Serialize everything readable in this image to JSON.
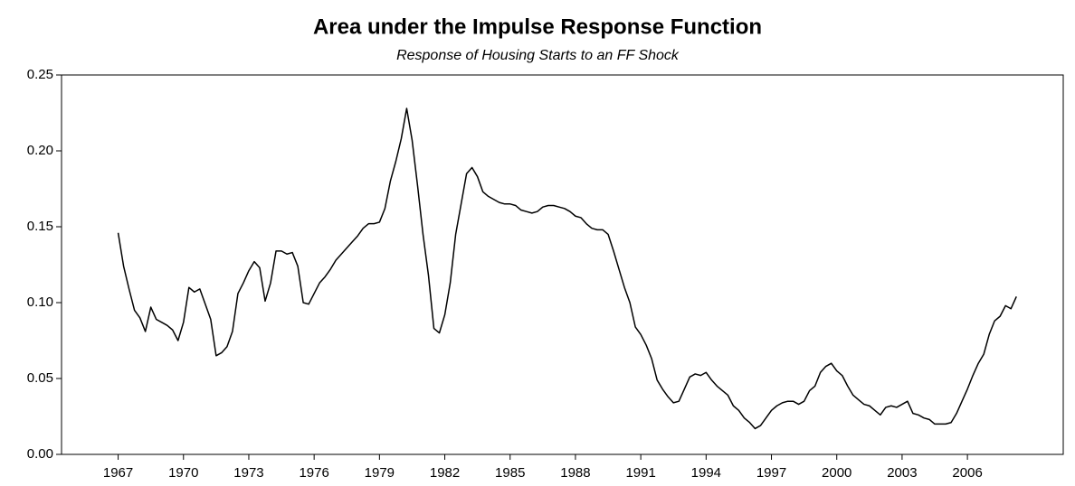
{
  "chart_data": {
    "type": "line",
    "title": "Area under the Impulse Response Function",
    "subtitle": "Response of Housing Starts to an FF Shock",
    "color": "#000000",
    "x": [
      1967,
      1967.25,
      1967.5,
      1967.75,
      1968,
      1968.25,
      1968.5,
      1968.75,
      1969,
      1969.25,
      1969.5,
      1969.75,
      1970,
      1970.25,
      1970.5,
      1970.75,
      1971,
      1971.25,
      1971.5,
      1971.75,
      1972,
      1972.25,
      1972.5,
      1972.75,
      1973,
      1973.25,
      1973.5,
      1973.75,
      1974,
      1974.25,
      1974.5,
      1974.75,
      1975,
      1975.25,
      1975.5,
      1975.75,
      1976,
      1976.25,
      1976.5,
      1976.75,
      1977,
      1977.25,
      1977.5,
      1977.75,
      1978,
      1978.25,
      1978.5,
      1978.75,
      1979,
      1979.25,
      1979.5,
      1979.75,
      1980,
      1980.25,
      1980.5,
      1980.75,
      1981,
      1981.25,
      1981.5,
      1981.75,
      1982,
      1982.25,
      1982.5,
      1982.75,
      1983,
      1983.25,
      1983.5,
      1983.75,
      1984,
      1984.25,
      1984.5,
      1984.75,
      1985,
      1985.25,
      1985.5,
      1985.75,
      1986,
      1986.25,
      1986.5,
      1986.75,
      1987,
      1987.25,
      1987.5,
      1987.75,
      1988,
      1988.25,
      1988.5,
      1988.75,
      1989,
      1989.25,
      1989.5,
      1989.75,
      1990,
      1990.25,
      1990.5,
      1990.75,
      1991,
      1991.25,
      1991.5,
      1991.75,
      1992,
      1992.25,
      1992.5,
      1992.75,
      1993,
      1993.25,
      1993.5,
      1993.75,
      1994,
      1994.25,
      1994.5,
      1994.75,
      1995,
      1995.25,
      1995.5,
      1995.75,
      1996,
      1996.25,
      1996.5,
      1996.75,
      1997,
      1997.25,
      1997.5,
      1997.75,
      1998,
      1998.25,
      1998.5,
      1998.75,
      1999,
      1999.25,
      1999.5,
      1999.75,
      2000,
      2000.25,
      2000.5,
      2000.75,
      2001,
      2001.25,
      2001.5,
      2001.75,
      2002,
      2002.25,
      2002.5,
      2002.75,
      2003,
      2003.25,
      2003.5,
      2003.75,
      2004,
      2004.25,
      2004.5,
      2004.75,
      2005,
      2005.25,
      2005.5,
      2005.75,
      2006,
      2006.25,
      2006.5,
      2006.75,
      2007,
      2007.25,
      2007.5,
      2007.75,
      2008,
      2008.25
    ],
    "values": [
      0.146,
      0.124,
      0.109,
      0.095,
      0.09,
      0.081,
      0.097,
      0.089,
      0.087,
      0.085,
      0.082,
      0.075,
      0.087,
      0.11,
      0.107,
      0.109,
      0.099,
      0.089,
      0.065,
      0.067,
      0.071,
      0.081,
      0.106,
      0.113,
      0.121,
      0.127,
      0.123,
      0.101,
      0.113,
      0.134,
      0.134,
      0.132,
      0.133,
      0.124,
      0.1,
      0.099,
      0.106,
      0.113,
      0.117,
      0.122,
      0.128,
      0.132,
      0.136,
      0.14,
      0.144,
      0.149,
      0.152,
      0.152,
      0.153,
      0.162,
      0.18,
      0.193,
      0.208,
      0.228,
      0.207,
      0.177,
      0.145,
      0.118,
      0.083,
      0.08,
      0.092,
      0.113,
      0.145,
      0.165,
      0.185,
      0.189,
      0.183,
      0.173,
      0.17,
      0.168,
      0.166,
      0.165,
      0.165,
      0.164,
      0.161,
      0.16,
      0.159,
      0.16,
      0.163,
      0.164,
      0.164,
      0.163,
      0.162,
      0.16,
      0.157,
      0.156,
      0.152,
      0.149,
      0.148,
      0.148,
      0.145,
      0.134,
      0.122,
      0.11,
      0.1,
      0.084,
      0.079,
      0.072,
      0.063,
      0.049,
      0.043,
      0.038,
      0.034,
      0.035,
      0.043,
      0.051,
      0.053,
      0.052,
      0.054,
      0.049,
      0.045,
      0.042,
      0.039,
      0.032,
      0.029,
      0.024,
      0.021,
      0.017,
      0.019,
      0.024,
      0.029,
      0.032,
      0.034,
      0.035,
      0.035,
      0.033,
      0.035,
      0.042,
      0.045,
      0.054,
      0.058,
      0.06,
      0.055,
      0.052,
      0.045,
      0.039,
      0.036,
      0.033,
      0.032,
      0.029,
      0.026,
      0.031,
      0.032,
      0.031,
      0.033,
      0.035,
      0.027,
      0.026,
      0.024,
      0.023,
      0.02,
      0.02,
      0.02,
      0.021,
      0.027,
      0.035,
      0.043,
      0.052,
      0.06,
      0.066,
      0.079,
      0.088,
      0.091,
      0.098,
      0.096,
      0.104
    ],
    "xlim": [
      1964.4,
      2010.4
    ],
    "xticks": [
      1967,
      1970,
      1973,
      1976,
      1979,
      1982,
      1985,
      1988,
      1991,
      1994,
      1997,
      2000,
      2003,
      2006
    ],
    "ylim": [
      0,
      0.25
    ],
    "yticks": [
      {
        "value": 0,
        "label": "0.00"
      },
      0.05,
      {
        "value": 0.1,
        "label": "0.10"
      },
      0.15,
      {
        "value": 0.2,
        "label": "0.20"
      },
      0.25
    ],
    "grid": false
  }
}
